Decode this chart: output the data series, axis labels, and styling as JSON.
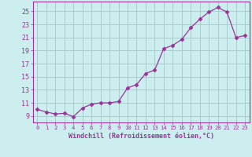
{
  "x": [
    0,
    1,
    2,
    3,
    4,
    5,
    6,
    7,
    8,
    9,
    10,
    11,
    12,
    13,
    14,
    15,
    16,
    17,
    18,
    19,
    20,
    21,
    22,
    23
  ],
  "y": [
    10.0,
    9.6,
    9.3,
    9.4,
    8.9,
    10.2,
    10.8,
    11.0,
    11.0,
    11.2,
    13.3,
    13.8,
    15.5,
    16.0,
    19.3,
    19.8,
    20.7,
    22.5,
    23.8,
    24.9,
    25.6,
    24.9,
    21.0,
    21.3
  ],
  "line_color": "#993399",
  "marker": "D",
  "marker_size": 2.5,
  "bg_color": "#cceeee",
  "grid_color": "#aacccc",
  "axis_color": "#993399",
  "xlabel": "Windchill (Refroidissement éolien,°C)",
  "xlim": [
    -0.5,
    23.5
  ],
  "ylim": [
    8.0,
    26.5
  ],
  "yticks": [
    9,
    11,
    13,
    15,
    17,
    19,
    21,
    23,
    25
  ],
  "xticks": [
    0,
    1,
    2,
    3,
    4,
    5,
    6,
    7,
    8,
    9,
    10,
    11,
    12,
    13,
    14,
    15,
    16,
    17,
    18,
    19,
    20,
    21,
    22,
    23
  ],
  "xlabel_fontsize": 6.0,
  "ytick_fontsize": 6.0,
  "xtick_fontsize": 5.2
}
